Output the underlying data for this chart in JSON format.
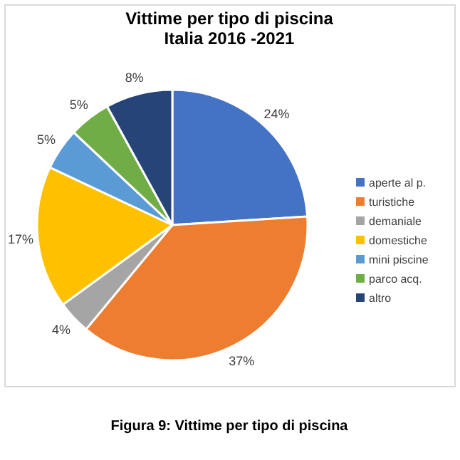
{
  "chart_data": {
    "type": "pie",
    "title": "Vittime per tipo di piscina",
    "subtitle": "Italia 2016 -2021",
    "categories": [
      "aperte al p.",
      "turistiche",
      "demaniale",
      "domestiche",
      "mini piscine",
      "parco acq.",
      "altro"
    ],
    "values": [
      24,
      37,
      4,
      17,
      5,
      5,
      8
    ],
    "colors": [
      "#4472c4",
      "#ed7d31",
      "#a5a5a5",
      "#ffc000",
      "#5b9bd5",
      "#70ad47",
      "#264478"
    ],
    "value_labels": [
      "24%",
      "37%",
      "4%",
      "17%",
      "5%",
      "5%",
      "8%"
    ],
    "legend": "right",
    "annotations": [
      "Figura 9: Vittime per tipo di piscina"
    ]
  }
}
